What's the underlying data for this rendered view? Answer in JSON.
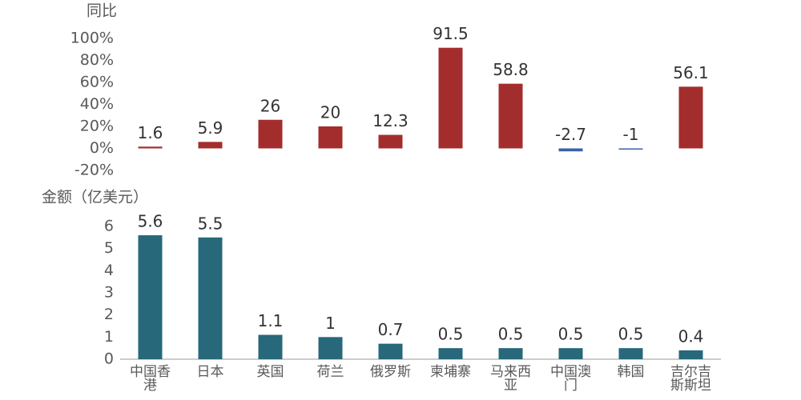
{
  "chart_data": [
    {
      "type": "bar",
      "y_label": "同比",
      "values": [
        1.6,
        5.9,
        26,
        20,
        12.3,
        91.5,
        58.8,
        -2.7,
        -1,
        56.1
      ],
      "color": "#a32d2d",
      "negative_color": "#3a62a7",
      "ylim": [
        -20,
        100
      ],
      "yticks": [
        {
          "value": -20,
          "label": "-20%"
        },
        {
          "value": 0,
          "label": "0%"
        },
        {
          "value": 20,
          "label": "20%"
        },
        {
          "value": 40,
          "label": "40%"
        },
        {
          "value": 60,
          "label": "60%"
        },
        {
          "value": 80,
          "label": "80%"
        },
        {
          "value": 100,
          "label": "100%"
        }
      ]
    },
    {
      "type": "bar",
      "y_label": "金额（亿美元）",
      "categories": [
        "中国香港",
        "日本",
        "英国",
        "荷兰",
        "俄罗斯",
        "柬埔寨",
        "马来西亚",
        "中国澳门",
        "韩国",
        "吉尔吉斯斯坦"
      ],
      "values": [
        5.6,
        5.5,
        1.1,
        1,
        0.7,
        0.5,
        0.5,
        0.5,
        0.5,
        0.4
      ],
      "color": "#27687a",
      "ylim": [
        0,
        6
      ],
      "yticks": [
        0,
        1,
        2,
        3,
        4,
        5,
        6
      ]
    }
  ]
}
